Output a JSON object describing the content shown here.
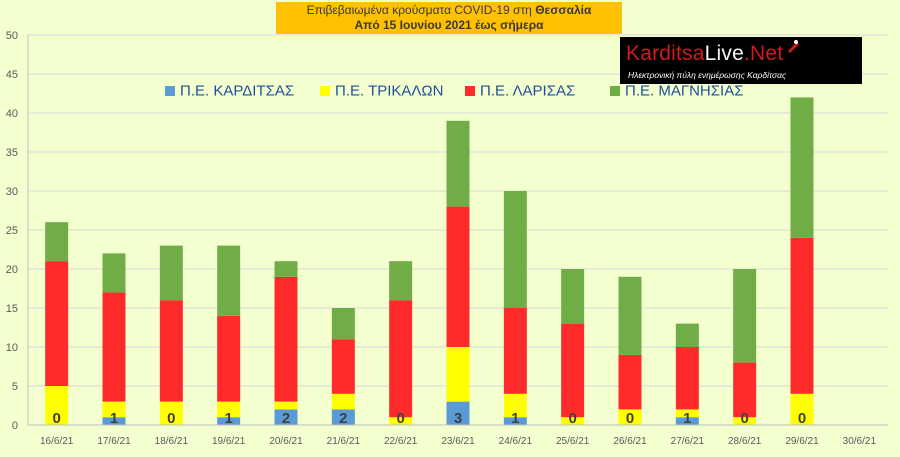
{
  "title": {
    "line1_prefix": "Επιβεβαιωμένα κρούσματα COVID-19 στη ",
    "line1_bold": "Θεσσαλία",
    "line2": "Από 15 Ιουνίου 2021 έως σήμερα"
  },
  "logo": {
    "name_part1": "Karditsa",
    "name_part2": "Live",
    "name_part3": ".Net",
    "tagline": "Ηλεκτρονική πύλη ενημέρωσης Καρδίτσας"
  },
  "colors": {
    "karditsa": "#5b9bd5",
    "trikala": "#ffff00",
    "larisa": "#ff2a2a",
    "magnesia": "#70ad47",
    "background": "#f4ffd0",
    "grid": "#d9d9d9"
  },
  "chart_data": {
    "type": "bar",
    "stacked": true,
    "categories": [
      "16/6/21",
      "17/6/21",
      "18/6/21",
      "19/6/21",
      "20/6/21",
      "21/6/21",
      "22/6/21",
      "23/6/21",
      "24/6/21",
      "25/6/21",
      "26/6/21",
      "27/6/21",
      "28/6/21",
      "29/6/21",
      "30/6/21"
    ],
    "series": [
      {
        "name": "Π.Ε. ΚΑΡΔΙΤΣΑΣ",
        "values": [
          0,
          1,
          0,
          1,
          2,
          2,
          0,
          3,
          1,
          0,
          0,
          1,
          0,
          0,
          null
        ]
      },
      {
        "name": "Π.Ε. ΤΡΙΚΑΛΩΝ",
        "values": [
          5,
          2,
          3,
          2,
          1,
          2,
          1,
          7,
          3,
          1,
          2,
          1,
          1,
          4,
          null
        ]
      },
      {
        "name": "Π.Ε. ΛΑΡΙΣΑΣ",
        "values": [
          16,
          14,
          13,
          11,
          16,
          7,
          15,
          18,
          11,
          12,
          7,
          8,
          7,
          20,
          null
        ]
      },
      {
        "name": "Π.Ε. ΜΑΓΝΗΣΙΑΣ",
        "values": [
          5,
          5,
          7,
          9,
          2,
          4,
          5,
          11,
          15,
          7,
          10,
          3,
          12,
          18,
          null
        ]
      }
    ],
    "data_labels": [
      "0",
      "1",
      "0",
      "1",
      "2",
      "2",
      "0",
      "3",
      "1",
      "0",
      "0",
      "1",
      "0",
      "0",
      ""
    ],
    "ylim": [
      0,
      50
    ],
    "yticks": [
      0,
      5,
      10,
      15,
      20,
      25,
      30,
      35,
      40,
      45,
      50
    ],
    "grid": true,
    "legend_position": "top"
  }
}
